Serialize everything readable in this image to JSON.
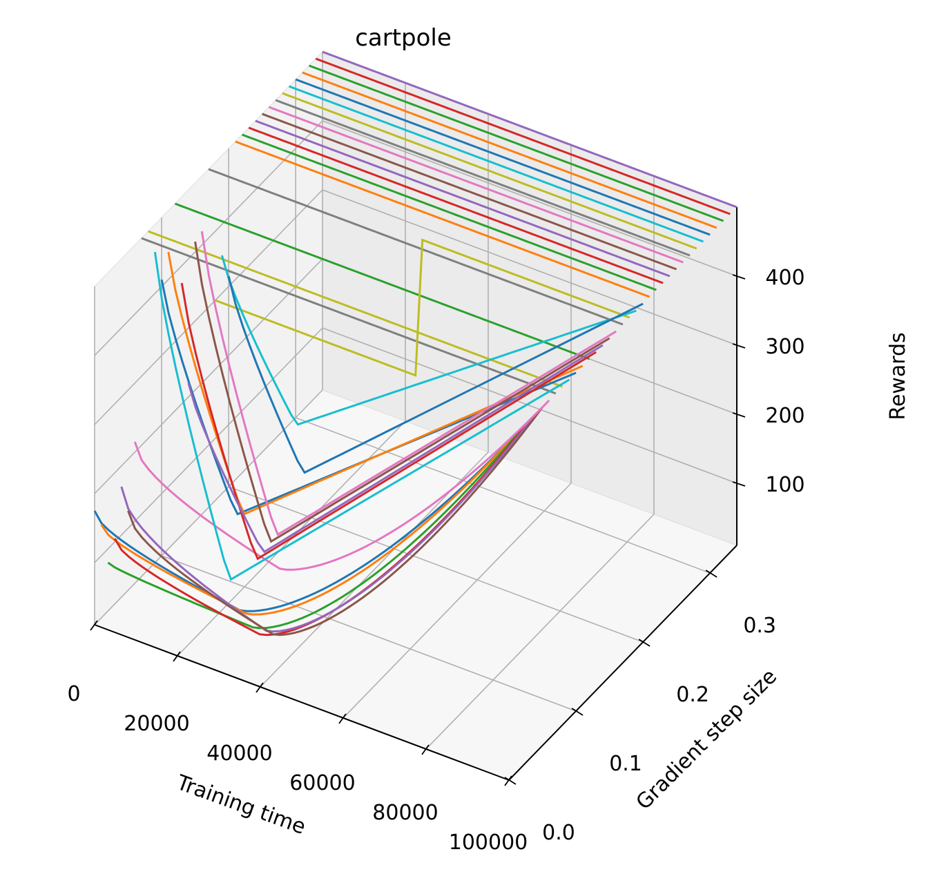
{
  "chart_data": {
    "type": "line",
    "projection": "3d",
    "title": "cartpole",
    "xlabel": "Training time",
    "ylabel": "Gradient step size",
    "zlabel": "Rewards",
    "x_ticks": [
      "0",
      "20000",
      "40000",
      "60000",
      "80000",
      "100000"
    ],
    "y_ticks": [
      "0.0",
      "0.1",
      "0.2",
      "0.3"
    ],
    "z_ticks": [
      "100",
      "200",
      "300",
      "400"
    ],
    "xlim": [
      0,
      100000
    ],
    "ylim": [
      0,
      0.34
    ],
    "zlim": [
      10,
      500
    ],
    "grid": true,
    "colors": [
      "#1f77b4",
      "#ff7f0e",
      "#2ca02c",
      "#d62728",
      "#9467bd",
      "#8c564b",
      "#e377c2",
      "#7f7f7f",
      "#bcbd22",
      "#17becf"
    ],
    "series": [
      {
        "y": 0.0,
        "kind": "u",
        "max": 175,
        "min": 110,
        "fast": 0
      },
      {
        "y": 0.01,
        "kind": "u",
        "max": 145,
        "min": 95,
        "fast": 0
      },
      {
        "y": 0.02,
        "kind": "u",
        "max": 80,
        "min": 65,
        "fast": 0
      },
      {
        "y": 0.03,
        "kind": "u",
        "max": 105,
        "min": 45,
        "fast": 0
      },
      {
        "y": 0.04,
        "kind": "u",
        "max": 170,
        "min": 40,
        "fast": 0
      },
      {
        "y": 0.05,
        "kind": "u",
        "max": 125,
        "min": 25,
        "fast": 0
      },
      {
        "y": 0.06,
        "kind": "u",
        "max": 215,
        "min": 110,
        "fast": 0
      },
      {
        "y": 0.07,
        "kind": "flat",
        "value": 500
      },
      {
        "y": 0.08,
        "kind": "flat",
        "value": 500
      },
      {
        "y": 0.09,
        "kind": "drop",
        "start": 460,
        "min": 25
      },
      {
        "y": 0.1,
        "kind": "drop",
        "start": 410,
        "min": 110
      },
      {
        "y": 0.11,
        "kind": "drop",
        "start": 440,
        "min": 100
      },
      {
        "y": 0.12,
        "kind": "flat",
        "value": 500
      },
      {
        "y": 0.13,
        "kind": "drop",
        "start": 375,
        "min": 15
      },
      {
        "y": 0.14,
        "kind": "drop",
        "start": 220,
        "min": 15
      },
      {
        "y": 0.15,
        "kind": "drop",
        "start": 415,
        "min": 20
      },
      {
        "y": 0.16,
        "kind": "drop",
        "start": 420,
        "min": 20
      },
      {
        "y": 0.17,
        "kind": "flat",
        "value": 500
      },
      {
        "y": 0.18,
        "kind": "plateau",
        "value": 300
      },
      {
        "y": 0.19,
        "kind": "drop",
        "start": 355,
        "min": 150
      },
      {
        "y": 0.2,
        "kind": "drop",
        "start": 315,
        "min": 70
      },
      {
        "y": 0.21,
        "kind": "flat",
        "value": 500
      },
      {
        "y": 0.22,
        "kind": "flat",
        "value": 500
      },
      {
        "y": 0.23,
        "kind": "flat",
        "value": 500
      },
      {
        "y": 0.24,
        "kind": "flat",
        "value": 500
      },
      {
        "y": 0.25,
        "kind": "flat",
        "value": 500
      },
      {
        "y": 0.26,
        "kind": "flat",
        "value": 500
      },
      {
        "y": 0.27,
        "kind": "flat",
        "value": 500
      },
      {
        "y": 0.28,
        "kind": "flat",
        "value": 500
      },
      {
        "y": 0.29,
        "kind": "flat",
        "value": 500
      },
      {
        "y": 0.3,
        "kind": "flat",
        "value": 500
      },
      {
        "y": 0.31,
        "kind": "flat",
        "value": 500
      },
      {
        "y": 0.32,
        "kind": "flat",
        "value": 500
      },
      {
        "y": 0.33,
        "kind": "flat",
        "value": 500
      },
      {
        "y": 0.34,
        "kind": "flat",
        "value": 500
      }
    ]
  }
}
